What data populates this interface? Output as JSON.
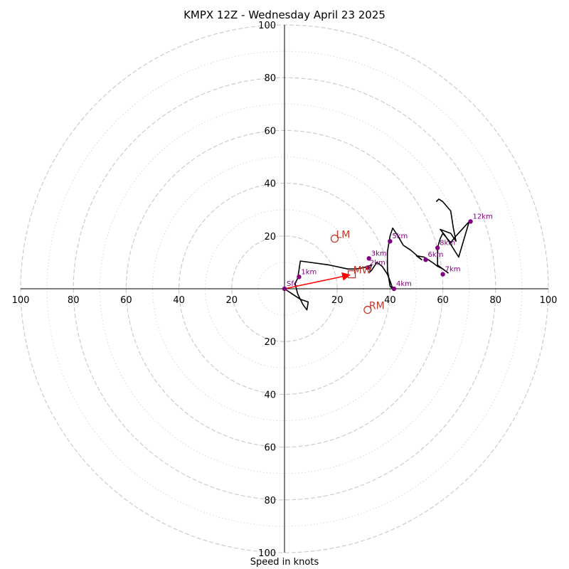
{
  "chart_data": {
    "type": "hodograph",
    "title": "KMPX 12Z - Wednesday April 23 2025",
    "xlabel": "Speed in knots",
    "range": 100,
    "major_rings": [
      20,
      40,
      60,
      80,
      100
    ],
    "minor_rings": [
      10,
      30,
      50,
      70,
      90
    ],
    "tick_labels": [
      "20",
      "40",
      "60",
      "80",
      "100"
    ],
    "colors": {
      "trace": "#000000",
      "heights": "#800080",
      "motion": "#c0392b",
      "grid": "#c8c8c8"
    },
    "trace": [
      [
        0,
        0
      ],
      [
        3,
        -2
      ],
      [
        6,
        -4
      ],
      [
        9,
        -5
      ],
      [
        8.5,
        -8
      ],
      [
        7,
        -6
      ],
      [
        5,
        -2
      ],
      [
        4,
        2
      ],
      [
        5,
        4
      ],
      [
        6,
        10.5
      ],
      [
        17,
        9
      ],
      [
        24,
        7.5
      ],
      [
        27,
        7.5
      ],
      [
        30,
        8
      ],
      [
        33,
        9
      ],
      [
        32,
        6
      ],
      [
        33,
        7
      ],
      [
        35,
        10
      ],
      [
        37,
        8.5
      ],
      [
        39,
        5.5
      ],
      [
        40,
        3
      ],
      [
        41,
        0
      ],
      [
        40,
        1
      ],
      [
        39,
        7
      ],
      [
        39,
        14
      ],
      [
        40,
        20
      ],
      [
        41,
        23
      ],
      [
        43,
        20
      ],
      [
        45,
        16.5
      ],
      [
        48,
        14.5
      ],
      [
        52,
        11
      ],
      [
        50,
        12.5
      ],
      [
        53,
        12
      ],
      [
        56,
        10
      ],
      [
        58,
        8.5
      ],
      [
        60,
        7.5
      ],
      [
        62,
        6
      ],
      [
        58,
        9
      ],
      [
        58,
        13
      ],
      [
        58,
        15.5
      ],
      [
        59,
        19
      ],
      [
        60,
        21
      ],
      [
        63,
        17.5
      ],
      [
        65,
        20
      ],
      [
        70,
        25.5
      ],
      [
        66,
        12
      ],
      [
        61,
        20
      ],
      [
        59,
        22.5
      ],
      [
        63,
        21
      ],
      [
        65,
        18
      ],
      [
        64,
        23
      ],
      [
        63,
        29.5
      ],
      [
        60,
        33
      ],
      [
        58.5,
        34
      ],
      [
        57.5,
        33
      ]
    ],
    "heights": [
      {
        "label": "Sfc",
        "u": 0,
        "v": 0
      },
      {
        "label": "1km",
        "u": 5.5,
        "v": 4.5
      },
      {
        "label": "2km",
        "u": 31.5,
        "v": 8
      },
      {
        "label": "3km",
        "u": 32,
        "v": 11.5
      },
      {
        "label": "4km",
        "u": 41.5,
        "v": 0
      },
      {
        "label": "5km",
        "u": 40,
        "v": 18
      },
      {
        "label": "6km",
        "u": 53.5,
        "v": 11
      },
      {
        "label": "7km",
        "u": 60,
        "v": 5.5
      },
      {
        "label": "8km",
        "u": 58,
        "v": 15.5
      },
      {
        "label": "12km",
        "u": 70.5,
        "v": 25.5
      }
    ],
    "storm_motion": [
      {
        "label": "LM",
        "u": 19,
        "v": 19,
        "marker": "circle"
      },
      {
        "label": "MW",
        "u": 25.5,
        "v": 5.5,
        "marker": "square"
      },
      {
        "label": "RM",
        "u": 31.5,
        "v": -8,
        "marker": "circle"
      }
    ]
  }
}
